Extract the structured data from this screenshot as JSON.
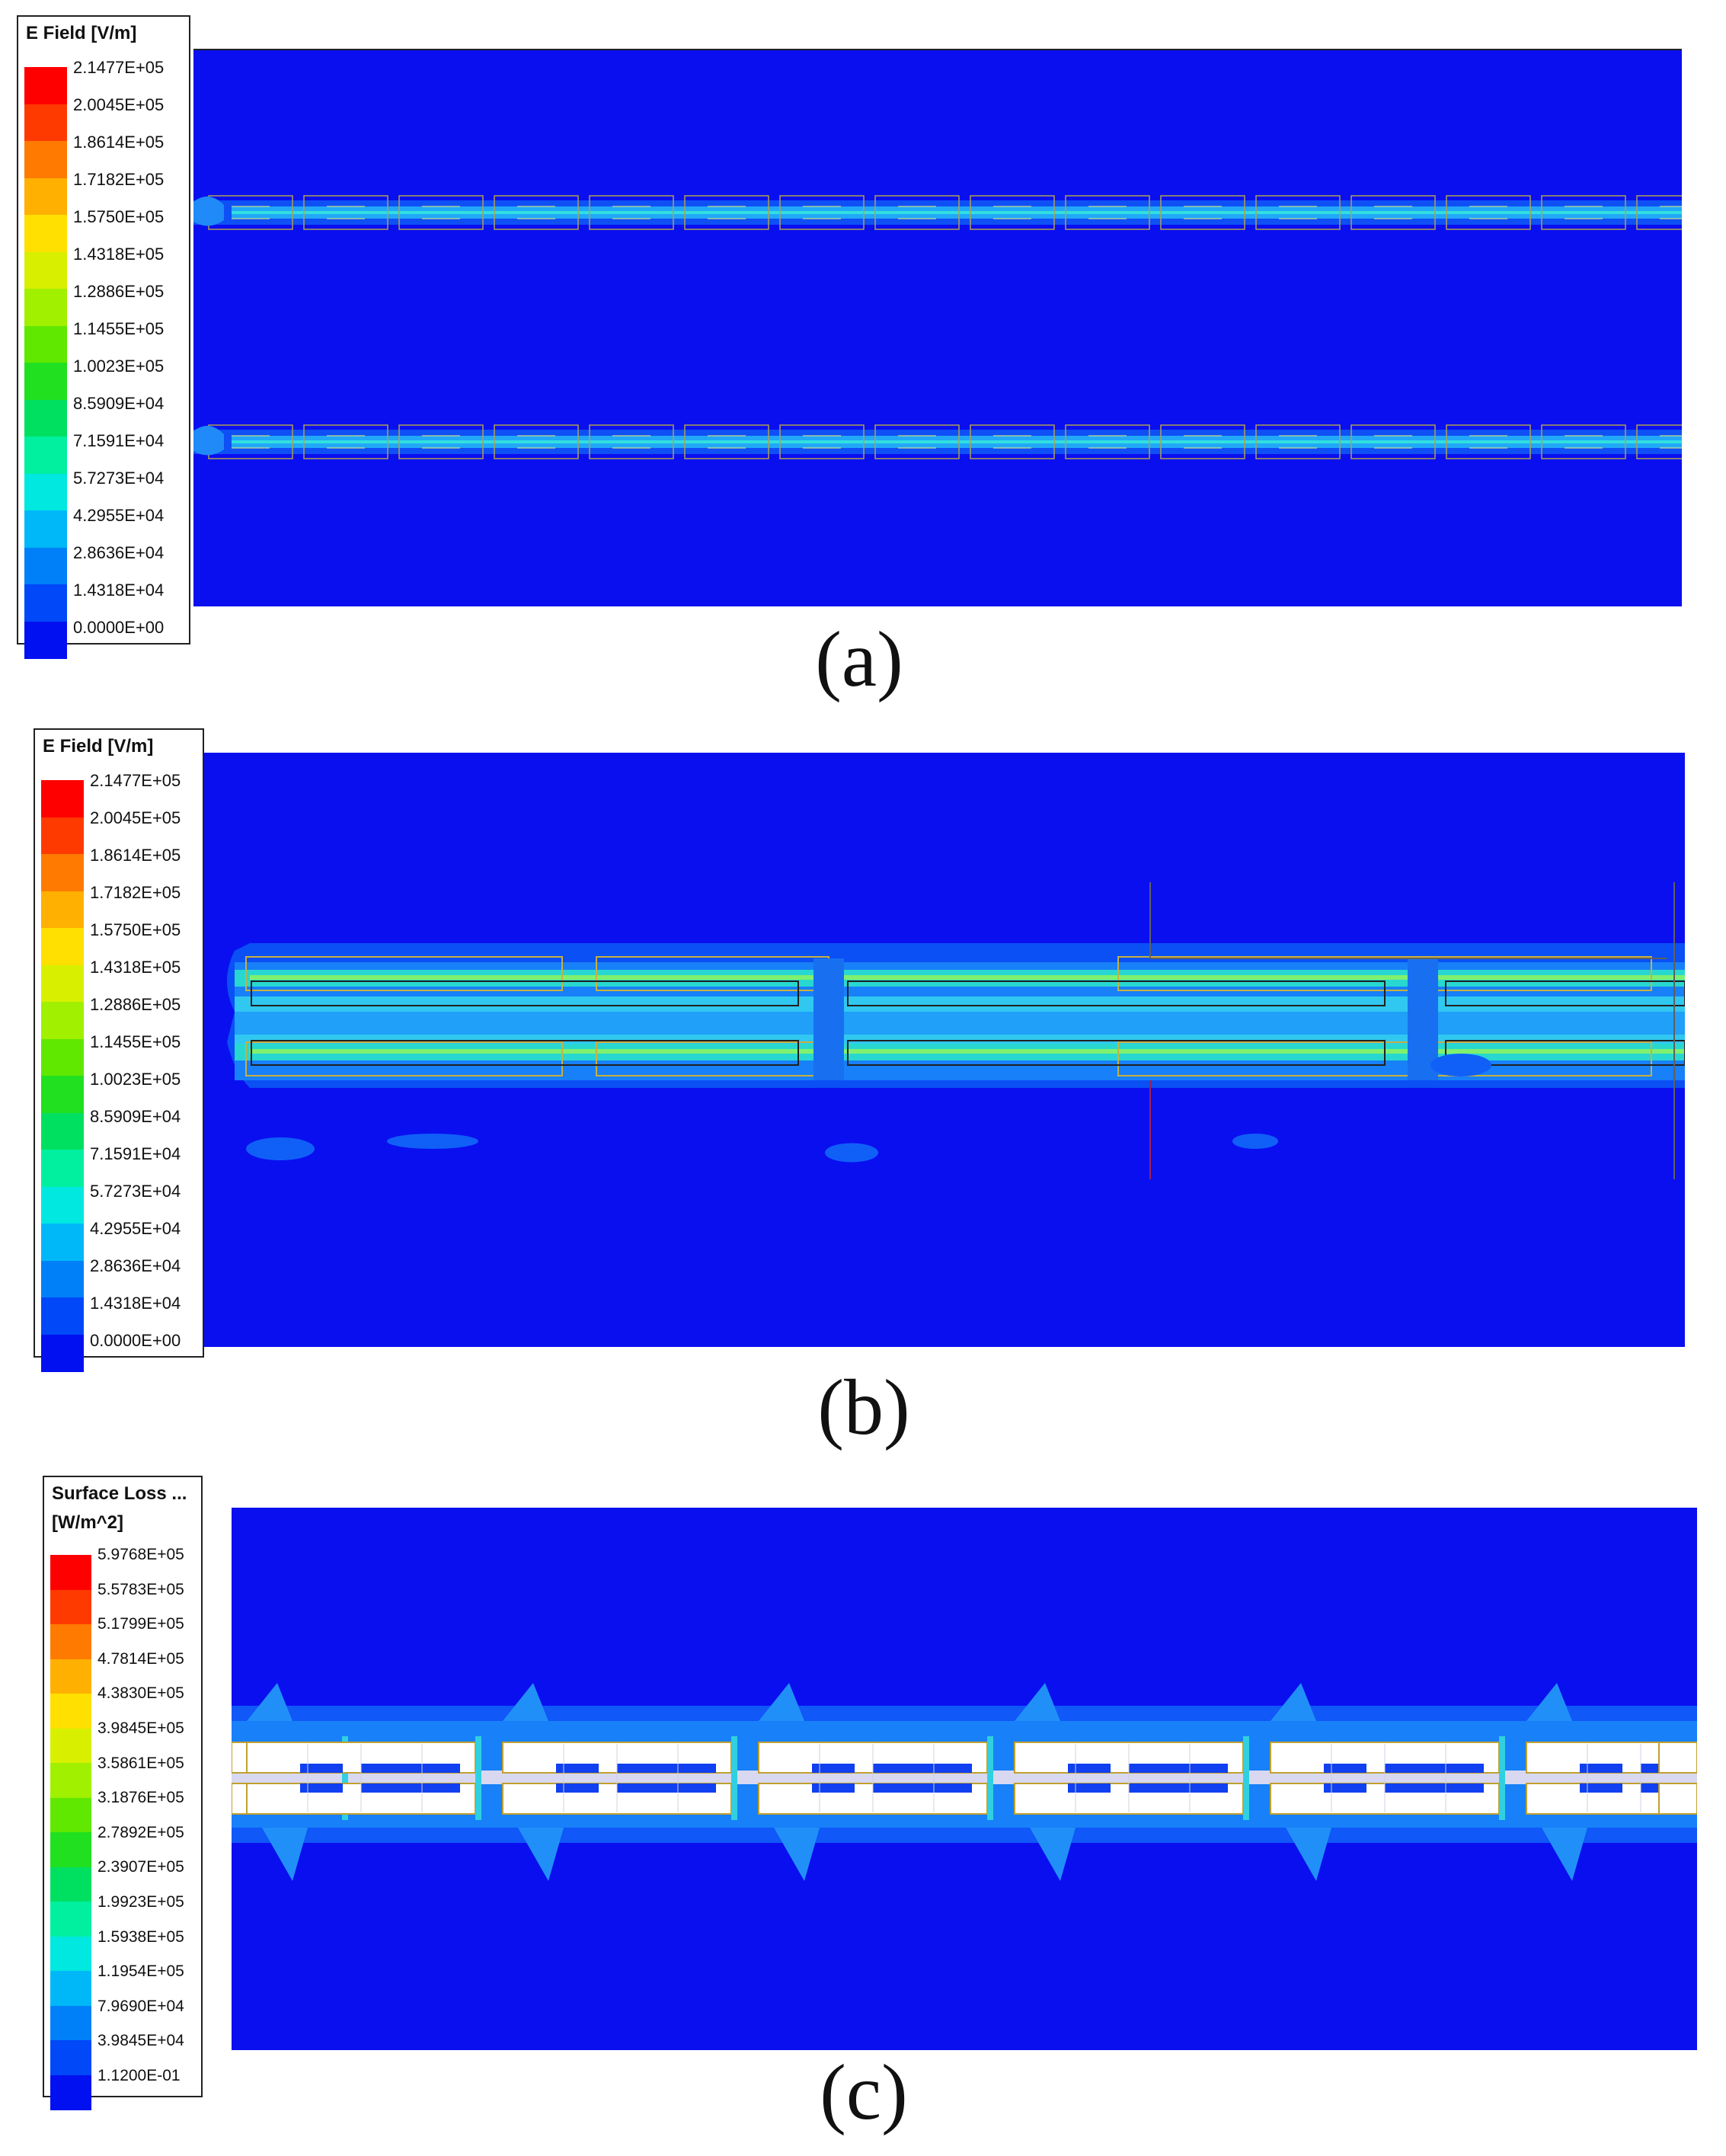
{
  "panels": [
    {
      "id": "a",
      "caption": "(a)",
      "legend": {
        "title_lines": [
          "E Field [V/m]"
        ],
        "labels": [
          "2.1477E+05",
          "2.0045E+05",
          "1.8614E+05",
          "1.7182E+05",
          "1.5750E+05",
          "1.4318E+05",
          "1.2886E+05",
          "1.1455E+05",
          "1.0023E+05",
          "8.5909E+04",
          "7.1591E+04",
          "5.7273E+04",
          "4.2955E+04",
          "2.8636E+04",
          "1.4318E+04",
          "0.0000E+00"
        ]
      },
      "background_color": "#0a0ff0"
    },
    {
      "id": "b",
      "caption": "(b)",
      "legend": {
        "title_lines": [
          "E Field [V/m]"
        ],
        "labels": [
          "2.1477E+05",
          "2.0045E+05",
          "1.8614E+05",
          "1.7182E+05",
          "1.5750E+05",
          "1.4318E+05",
          "1.2886E+05",
          "1.1455E+05",
          "1.0023E+05",
          "8.5909E+04",
          "7.1591E+04",
          "5.7273E+04",
          "4.2955E+04",
          "2.8636E+04",
          "1.4318E+04",
          "0.0000E+00"
        ]
      },
      "background_color": "#0a0ff0"
    },
    {
      "id": "c",
      "caption": "(c)",
      "legend": {
        "title_lines": [
          "Surface Loss ...",
          "[W/m^2]"
        ],
        "labels": [
          "5.9768E+05",
          "5.5783E+05",
          "5.1799E+05",
          "4.7814E+05",
          "4.3830E+05",
          "3.9845E+05",
          "3.5861E+05",
          "3.1876E+05",
          "2.7892E+05",
          "2.3907E+05",
          "1.9923E+05",
          "1.5938E+05",
          "1.1954E+05",
          "7.9690E+04",
          "3.9845E+04",
          "1.1200E-01"
        ]
      },
      "background_color": "#0a0ff0"
    }
  ],
  "colormap": [
    "#ff0000",
    "#ff3a00",
    "#ff7a00",
    "#ffb000",
    "#ffe000",
    "#d8f000",
    "#a0f000",
    "#60e800",
    "#20e020",
    "#00e060",
    "#00f0a0",
    "#00e8e0",
    "#00b8f8",
    "#0080f8",
    "#0048f8",
    "#0010f0"
  ]
}
